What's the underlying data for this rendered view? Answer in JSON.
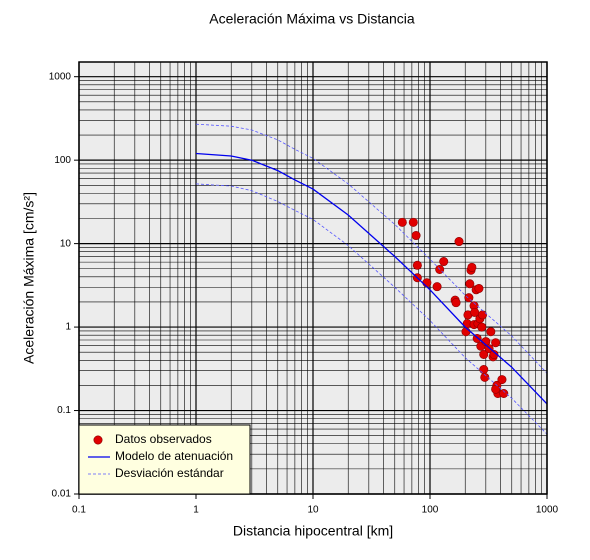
{
  "chart_data": {
    "type": "scatter",
    "title": "Aceleración Máxima vs Distancia",
    "xlabel": "Distancia hipocentral [km]",
    "ylabel": "Aceleración Máxima [cm/s²]",
    "xscale": "log",
    "yscale": "log",
    "xlim": [
      0.1,
      1000
    ],
    "ylim": [
      0.01,
      1500
    ],
    "xticks": [
      0.1,
      1,
      10,
      100,
      1000
    ],
    "yticks": [
      0.01,
      0.1,
      1,
      10,
      100,
      1000
    ],
    "grid": true,
    "minor_grid": true,
    "legend": "lower left",
    "series": [
      {
        "name": "Datos observados",
        "type": "scatter",
        "color": "#e00000",
        "x": [
          58,
          72,
          76,
          78,
          78,
          94,
          115,
          121,
          131,
          177,
          164,
          167,
          203,
          208,
          211,
          215,
          219,
          224,
          228,
          238,
          238,
          241,
          248,
          253,
          257,
          262,
          267,
          272,
          277,
          281,
          288,
          288,
          294,
          300,
          320,
          331,
          346,
          352,
          364,
          373,
          380,
          412,
          427,
          364
        ],
        "values": [
          18,
          18,
          12.5,
          5.5,
          3.9,
          3.4,
          3.05,
          4.9,
          6.1,
          10.6,
          2.1,
          1.96,
          0.88,
          1.1,
          1.4,
          2.25,
          3.3,
          4.8,
          5.2,
          1.8,
          1.07,
          1.5,
          2.8,
          0.73,
          1.1,
          2.9,
          1.26,
          0.59,
          1.0,
          1.4,
          0.31,
          0.47,
          0.25,
          0.67,
          0.55,
          0.88,
          0.44,
          0.47,
          0.65,
          0.2,
          0.16,
          0.235,
          0.16,
          0.18
        ]
      },
      {
        "name": "Modelo de atenuación",
        "type": "line",
        "color": "#0000ee",
        "x": [
          1,
          2,
          3,
          5,
          7,
          10,
          20,
          50,
          100,
          200,
          500,
          1000
        ],
        "values": [
          120,
          112,
          100,
          75,
          58,
          45,
          22,
          7,
          2.8,
          1.0,
          0.33,
          0.12
        ]
      },
      {
        "name": "Desviación estándar",
        "type": "band-lines",
        "color": "#5555ff",
        "dashed": true,
        "x": [
          1,
          2,
          3,
          5,
          7,
          10,
          20,
          50,
          100,
          200,
          500,
          1000
        ],
        "upper": [
          270,
          255,
          230,
          175,
          135,
          105,
          52,
          17,
          6.5,
          2.4,
          0.78,
          0.28
        ],
        "lower": [
          52,
          49,
          43,
          32,
          25,
          19.5,
          9.5,
          3,
          1.2,
          0.43,
          0.14,
          0.052
        ]
      }
    ]
  }
}
